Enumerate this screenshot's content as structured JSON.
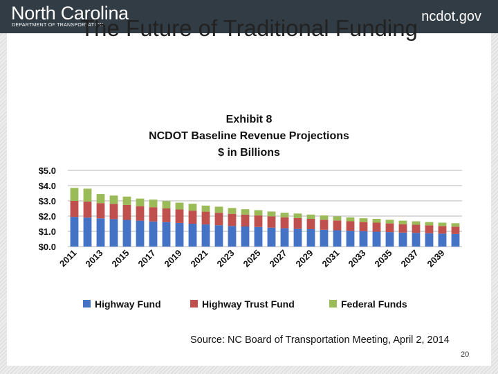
{
  "header": {
    "org_name": "North Carolina",
    "org_sub": "DEPARTMENT OF TRANSPORTATION",
    "site": "ncdot.gov"
  },
  "slide": {
    "title": "The Future of Traditional Funding",
    "source": "Source: NC Board of Transportation Meeting, April 2, 2014",
    "page_number": "20"
  },
  "chart_data": {
    "type": "bar",
    "stacked": true,
    "title": [
      "Exhibit 8",
      "NCDOT Baseline Revenue Projections",
      "$ in Billions"
    ],
    "categories": [
      "2011",
      "2012",
      "2013",
      "2014",
      "2015",
      "2016",
      "2017",
      "2018",
      "2019",
      "2020",
      "2021",
      "2022",
      "2023",
      "2024",
      "2025",
      "2026",
      "2027",
      "2028",
      "2029",
      "2030",
      "2031",
      "2032",
      "2033",
      "2034",
      "2035",
      "2036",
      "2037",
      "2038",
      "2039",
      "2040"
    ],
    "tick_labels": [
      "2011",
      "",
      "2013",
      "",
      "2015",
      "",
      "2017",
      "",
      "2019",
      "",
      "2021",
      "",
      "2023",
      "",
      "2025",
      "",
      "2027",
      "",
      "2029",
      "",
      "2031",
      "",
      "2033",
      "",
      "2035",
      "",
      "2037",
      "",
      "2039",
      ""
    ],
    "y_ticks": [
      "$0.0",
      "$1.0",
      "$2.0",
      "$3.0",
      "$4.0",
      "$5.0"
    ],
    "ylim": [
      0,
      5
    ],
    "grid": true,
    "legend_position": "bottom",
    "series": [
      {
        "name": "Highway Fund",
        "color": "#4472c4",
        "values": [
          1.95,
          1.9,
          1.85,
          1.8,
          1.75,
          1.7,
          1.65,
          1.6,
          1.55,
          1.5,
          1.45,
          1.4,
          1.35,
          1.32,
          1.28,
          1.24,
          1.2,
          1.17,
          1.14,
          1.1,
          1.07,
          1.04,
          1.01,
          0.98,
          0.95,
          0.92,
          0.9,
          0.87,
          0.85,
          0.83
        ]
      },
      {
        "name": "Highway Trust Fund",
        "color": "#c0504d",
        "values": [
          1.05,
          1.05,
          1.0,
          1.0,
          0.98,
          0.95,
          0.93,
          0.9,
          0.88,
          0.86,
          0.84,
          0.82,
          0.8,
          0.78,
          0.76,
          0.74,
          0.72,
          0.7,
          0.68,
          0.66,
          0.64,
          0.62,
          0.6,
          0.59,
          0.57,
          0.55,
          0.53,
          0.52,
          0.5,
          0.48
        ]
      },
      {
        "name": "Federal Funds",
        "color": "#9bbb59",
        "values": [
          0.85,
          0.85,
          0.6,
          0.55,
          0.55,
          0.5,
          0.5,
          0.48,
          0.45,
          0.45,
          0.4,
          0.4,
          0.38,
          0.35,
          0.35,
          0.32,
          0.3,
          0.3,
          0.28,
          0.28,
          0.27,
          0.26,
          0.25,
          0.25,
          0.24,
          0.23,
          0.23,
          0.22,
          0.22,
          0.22
        ]
      }
    ]
  }
}
